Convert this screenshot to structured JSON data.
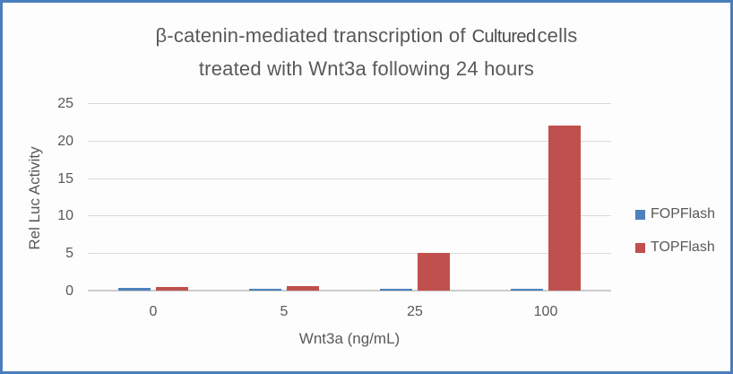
{
  "window": {
    "border_color": "#4a7ebb",
    "background": "#fdfdfd"
  },
  "title": {
    "prefix": "β-catenin-mediated transcription of",
    "inserted": "Cultured",
    "suffix": "cells",
    "line2": "treated with Wnt3a following 24 hours"
  },
  "chart_data": {
    "type": "bar",
    "title": "β-catenin-mediated transcription of Cultured cells treated with Wnt3a following 24 hours",
    "categories": [
      "0",
      "5",
      "25",
      "100"
    ],
    "series": [
      {
        "name": "FOPFlash",
        "color": "#4f81bd",
        "values": [
          0.4,
          0.3,
          0.2,
          0.2
        ]
      },
      {
        "name": "TOPFlash",
        "color": "#c0504d",
        "values": [
          0.5,
          0.6,
          5,
          22
        ]
      }
    ],
    "xlabel": "Wnt3a (ng/mL)",
    "ylabel": "Rel Luc Activity",
    "ylim": [
      0,
      25
    ],
    "yticks": [
      0,
      5,
      10,
      15,
      20,
      25
    ],
    "grid": true,
    "legend_position": "right",
    "text_color": "#595959",
    "gridline_color": "#d9d9d9",
    "axis_line_color": "#cbcbcb"
  }
}
